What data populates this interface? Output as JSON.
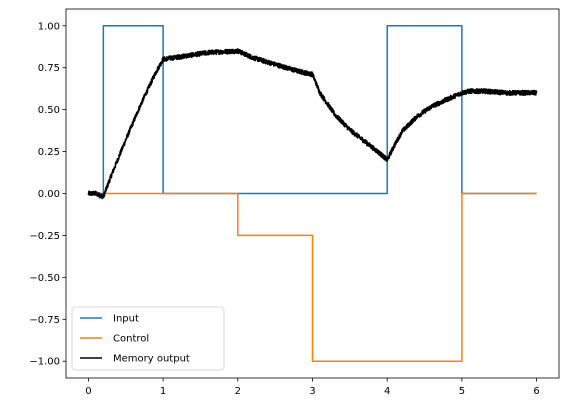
{
  "chart_data": {
    "type": "line",
    "title": "",
    "xlabel": "",
    "ylabel": "",
    "xlim": [
      -0.3,
      6.3
    ],
    "ylim": [
      -1.1,
      1.1
    ],
    "x_ticks": [
      0,
      1,
      2,
      3,
      4,
      5,
      6
    ],
    "x_tick_labels": [
      "0",
      "1",
      "2",
      "3",
      "4",
      "5",
      "6"
    ],
    "y_ticks": [
      1.0,
      0.75,
      0.5,
      0.25,
      0.0,
      -0.25,
      -0.5,
      -0.75,
      -1.0
    ],
    "y_tick_labels": [
      "1.00",
      "0.75",
      "0.50",
      "0.25",
      "0.00",
      "−0.25",
      "−0.50",
      "−0.75",
      "−1.00"
    ],
    "grid": false,
    "legend_position": "bottom-left",
    "series": [
      {
        "name": "Input",
        "color": "#1f77b4",
        "style": "step",
        "x": [
          0,
          0.2,
          0.2,
          1.0,
          1.0,
          4.0,
          4.0,
          5.0,
          5.0,
          6.0
        ],
        "y": [
          0,
          0,
          1,
          1,
          0,
          0,
          1,
          1,
          0,
          0
        ]
      },
      {
        "name": "Control",
        "color": "#ff7f0e",
        "style": "step",
        "x": [
          0.2,
          2.0,
          2.0,
          3.0,
          3.0,
          5.0,
          5.0,
          6.0
        ],
        "y": [
          0,
          0,
          -0.25,
          -0.25,
          -1.0,
          -1.0,
          0,
          0
        ]
      },
      {
        "name": "Memory output",
        "color": "#000000",
        "style": "noisy-line",
        "x": [
          0,
          0.1,
          0.2,
          0.3,
          0.5,
          0.7,
          0.9,
          1.0,
          1.3,
          1.6,
          2.0,
          2.2,
          2.5,
          2.8,
          3.0,
          3.1,
          3.3,
          3.5,
          3.7,
          3.9,
          4.0,
          4.1,
          4.2,
          4.4,
          4.6,
          4.8,
          5.0,
          5.1,
          5.3,
          5.6,
          6.0
        ],
        "y": [
          0.0,
          0.0,
          -0.02,
          0.1,
          0.32,
          0.53,
          0.72,
          0.8,
          0.82,
          0.84,
          0.85,
          0.81,
          0.77,
          0.73,
          0.71,
          0.6,
          0.47,
          0.38,
          0.31,
          0.24,
          0.2,
          0.29,
          0.37,
          0.46,
          0.52,
          0.56,
          0.6,
          0.61,
          0.61,
          0.6,
          0.6
        ]
      }
    ]
  }
}
